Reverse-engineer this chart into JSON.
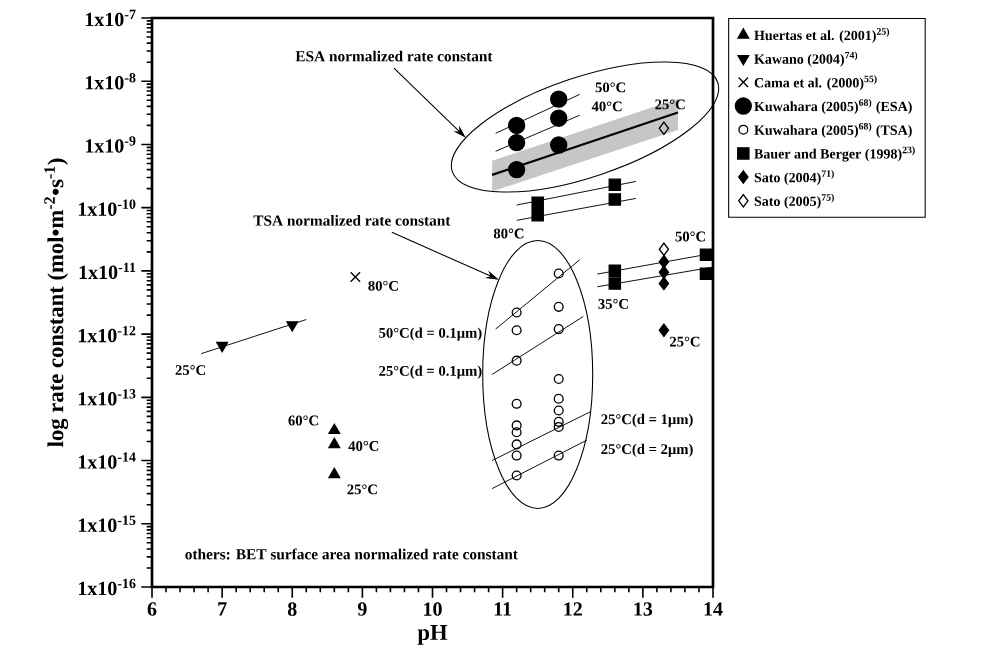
{
  "chart_data": {
    "type": "scatter",
    "xlabel": "pH",
    "ylabel": "log rate constant (mol•m$^{-2}$•s$^{-1}$)",
    "xlim": [
      6,
      14
    ],
    "ylim": [
      1e-16,
      1e-07
    ],
    "log": "y",
    "xticks": [
      6,
      7,
      8,
      9,
      10,
      11,
      12,
      13,
      14
    ],
    "yticks": [
      {
        "value": 1e-16,
        "label": "1x10$^{-16}$"
      },
      {
        "value": 1e-15,
        "label": "1x10$^{-15}$"
      },
      {
        "value": 1e-14,
        "label": "1x10$^{-14}$"
      },
      {
        "value": 1e-13,
        "label": "1x10$^{-13}$"
      },
      {
        "value": 1e-12,
        "label": "1x10$^{-12}$"
      },
      {
        "value": 1e-11,
        "label": "1x10$^{-11}$"
      },
      {
        "value": 1e-10,
        "label": "1x10$^{-10}$"
      },
      {
        "value": 1e-09,
        "label": "1x10$^{-9}$"
      },
      {
        "value": 1e-08,
        "label": "1x10$^{-8}$"
      },
      {
        "value": 1e-07,
        "label": "1x10$^{-7}$"
      }
    ],
    "legend": "top right",
    "series": [
      {
        "type": "line",
        "color": "#000000",
        "marker": "none",
        "x": [
          6.7,
          8.2
        ],
        "values": [
          4.9e-13,
          1.7e-12
        ]
      },
      {
        "type": "line",
        "color": "#000000",
        "marker": "none",
        "x": [
          10.9,
          12.1
        ],
        "values": [
          1.5e-09,
          6.2e-09
        ]
      },
      {
        "type": "line",
        "color": "#000000",
        "marker": "none",
        "x": [
          10.9,
          12.1
        ],
        "values": [
          7.8e-10,
          2.9e-09
        ]
      },
      {
        "type": "line",
        "color": "#000000",
        "marker": "none",
        "x": [
          10.85,
          13.5
        ],
        "values": [
          3.3e-10,
          3.2e-09
        ],
        "lower": [
          1.8e-10,
          1.7e-09
        ],
        "upper": [
          5.5e-10,
          5.3e-09
        ]
      },
      {
        "type": "line",
        "color": "#000000",
        "marker": "none",
        "x": [
          11.2,
          12.9
        ],
        "values": [
          1.1e-10,
          2.6e-10
        ]
      },
      {
        "type": "line",
        "color": "#000000",
        "marker": "none",
        "x": [
          11.2,
          12.9
        ],
        "values": [
          6.3e-11,
          1.4e-10
        ]
      },
      {
        "type": "line",
        "color": "#000000",
        "marker": "none",
        "x": [
          12.35,
          14
        ],
        "values": [
          8.9e-12,
          1.9e-11
        ]
      },
      {
        "type": "line",
        "color": "#000000",
        "marker": "none",
        "x": [
          12.35,
          14
        ],
        "values": [
          5.6e-12,
          1.15e-11
        ]
      },
      {
        "type": "line",
        "color": "#000000",
        "marker": "none",
        "x": [
          10.9,
          12.1
        ],
        "values": [
          1.2e-12,
          1.5e-11
        ]
      },
      {
        "type": "line",
        "color": "#000000",
        "marker": "none",
        "x": [
          10.85,
          12.15
        ],
        "values": [
          2.3e-13,
          1.9e-12
        ]
      },
      {
        "type": "line",
        "color": "#000000",
        "marker": "none",
        "x": [
          10.85,
          12.25
        ],
        "values": [
          1e-14,
          5.9e-14
        ]
      },
      {
        "type": "line",
        "color": "#000000",
        "marker": "none",
        "x": [
          10.85,
          12.2
        ],
        "values": [
          3.6e-15,
          2.1e-14
        ]
      },
      {
        "name": "Huertas et al. (2001)$^{25)}$",
        "color": "#000000",
        "marker": "triangle",
        "x": [
          8.6,
          8.6,
          8.6
        ],
        "values": [
          3e-14,
          1.8e-14,
          6e-15
        ]
      },
      {
        "name": "Kawano (2004)$^{74)}$",
        "color": "#000000",
        "marker": "triangle down",
        "x": [
          7,
          8
        ],
        "values": [
          6.6e-13,
          1.4e-12
        ]
      },
      {
        "name": "Cama et al. (2000)$^{55)}$",
        "color": "#000000",
        "marker": "cross",
        "x": [
          8.9
        ],
        "values": [
          8e-12
        ]
      },
      {
        "name": "Kuwahara (2005)$^{68)}$ (ESA)",
        "color": "#000000",
        "marker": "circle",
        "x": [
          11.2,
          11.2,
          11.2,
          11.8,
          11.8,
          11.8
        ],
        "values": [
          2e-09,
          1.07e-09,
          4e-10,
          5.2e-09,
          2.6e-09,
          9.8e-10
        ]
      },
      {
        "name": "Kuwahara (2005)$^{68)}$ (TSA)",
        "color": "#000000",
        "marker": "circle open",
        "x": [
          11.2,
          11.2,
          11.2,
          11.2,
          11.2,
          11.2,
          11.2,
          11.2,
          11.2,
          11.8,
          11.8,
          11.8,
          11.8,
          11.8,
          11.8,
          11.8,
          11.8,
          11.8
        ],
        "values": [
          2.2e-12,
          1.15e-12,
          3.8e-13,
          7.9e-14,
          3.6e-14,
          2.8e-14,
          1.8e-14,
          1.2e-14,
          5.8e-15,
          9.1e-12,
          2.7e-12,
          1.2e-12,
          1.95e-13,
          9.5e-14,
          6.2e-14,
          4.1e-14,
          3.4e-14,
          1.2e-14
        ]
      },
      {
        "name": "Bauer and Berger (1998)$^{23)}$",
        "color": "#000000",
        "marker": "square",
        "x": [
          11.5,
          11.5,
          12.6,
          12.6,
          12.6,
          12.6,
          13.9,
          13.9
        ],
        "values": [
          1.2e-10,
          7.6e-11,
          2.3e-10,
          1.35e-10,
          1e-11,
          6.3e-12,
          1.8e-11,
          9e-12
        ]
      },
      {
        "name": "Sato (2004)$^{71)}$",
        "color": "#000000",
        "marker": "diamond",
        "x": [
          13.3,
          13.3,
          13.3,
          13.3
        ],
        "values": [
          1.4e-11,
          9.5e-12,
          6.3e-12,
          1.15e-12
        ]
      },
      {
        "name": "Sato (2005)$^{75)}$",
        "color": "#000000",
        "marker": "diamond open",
        "x": [
          13.3,
          13.3
        ],
        "values": [
          1.8e-09,
          2.2e-11
        ]
      }
    ],
    "annotations": [
      "ESA normalized rate constant",
      "TSA normalized rate constant",
      "50°C",
      "40°C",
      "25°C",
      "80°C",
      "50°C",
      "35°C",
      "25°C",
      "80°C",
      "25°C",
      "60°C",
      "40°C",
      "25°C",
      "50°C(d = 0.1μm)",
      "25°C(d = 0.1μm)",
      "25°C(d = 1μm)",
      "25°C(d = 2μm)",
      "others: BET surface area normalized rate constant"
    ]
  }
}
